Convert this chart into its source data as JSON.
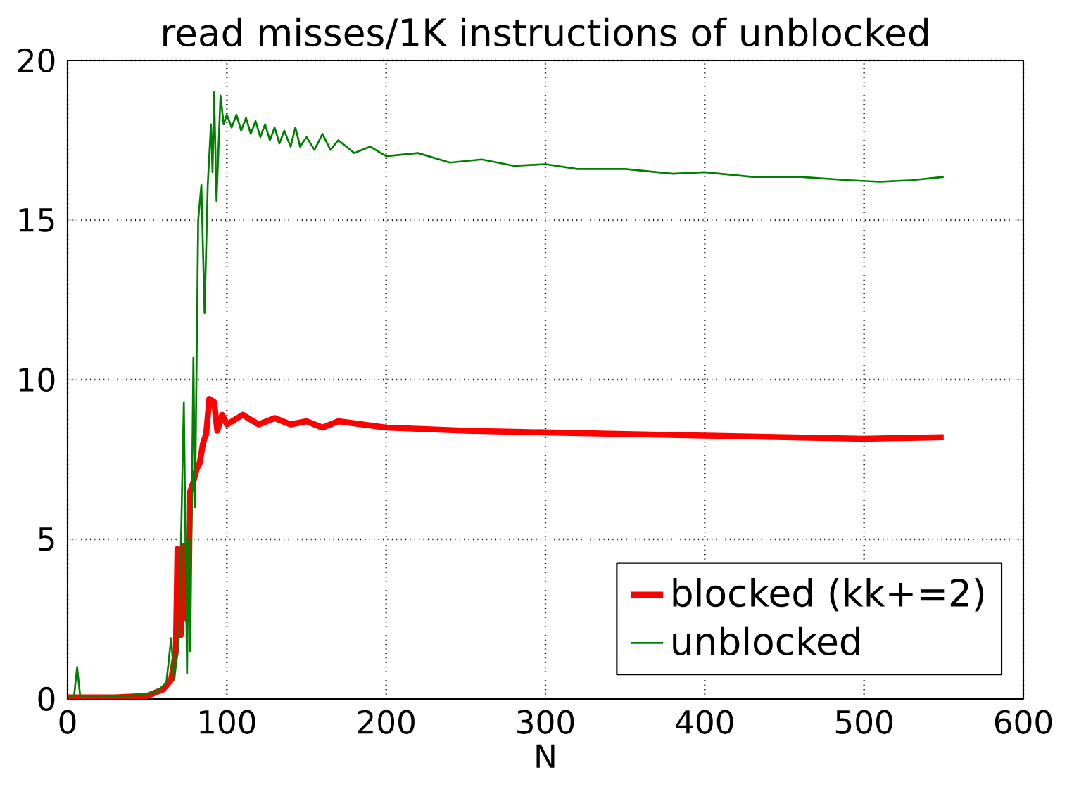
{
  "chart_data": {
    "type": "line",
    "title": "read misses/1K instructions of unblocked",
    "xlabel": "N",
    "xlim": [
      0,
      600
    ],
    "ylim": [
      0,
      20
    ],
    "xticks": [
      0,
      100,
      200,
      300,
      400,
      500,
      600
    ],
    "yticks": [
      0,
      5,
      10,
      15,
      20
    ],
    "grid": true,
    "legend": "bottom right",
    "marker": "none",
    "line_style": "solid",
    "series": [
      {
        "name": "blocked (kk+=2)",
        "color": "#ff0000",
        "x": [
          0,
          30,
          50,
          60,
          65,
          68,
          69,
          71,
          73,
          75,
          77,
          79,
          81,
          83,
          85,
          87,
          89,
          92,
          94,
          97,
          100,
          110,
          120,
          130,
          140,
          150,
          160,
          170,
          200,
          250,
          300,
          350,
          400,
          450,
          500,
          550
        ],
        "values": [
          0.05,
          0.05,
          0.1,
          0.3,
          0.6,
          1.5,
          4.7,
          2.0,
          4.8,
          2.5,
          6.5,
          6.8,
          7.2,
          7.4,
          8.0,
          8.3,
          9.4,
          9.3,
          8.4,
          8.9,
          8.6,
          8.9,
          8.6,
          8.8,
          8.6,
          8.7,
          8.5,
          8.7,
          8.5,
          8.4,
          8.35,
          8.3,
          8.25,
          8.2,
          8.15,
          8.2
        ]
      },
      {
        "name": "unblocked",
        "color": "#008000",
        "x": [
          0,
          4,
          6,
          8,
          20,
          40,
          55,
          62,
          65,
          67,
          70,
          73,
          75,
          76,
          77,
          79,
          80,
          82,
          84,
          86,
          88,
          90,
          91,
          92,
          93.5,
          96,
          98,
          100,
          103,
          106,
          109,
          112,
          115,
          118,
          121,
          124,
          127,
          130,
          133,
          136,
          140,
          143,
          146,
          150,
          155,
          160,
          165,
          170,
          180,
          190,
          200,
          220,
          240,
          260,
          280,
          300,
          320,
          350,
          380,
          400,
          430,
          460,
          490,
          510,
          530,
          550
        ],
        "values": [
          0.05,
          0.05,
          1.0,
          0.05,
          0.05,
          0.1,
          0.2,
          0.5,
          1.9,
          0.6,
          2.0,
          9.3,
          0.8,
          5.0,
          1.5,
          10.7,
          6,
          15,
          16.1,
          12.1,
          16.1,
          18.0,
          16.5,
          19.0,
          15.6,
          18.9,
          18.0,
          18.3,
          17.9,
          18.3,
          17.8,
          18.2,
          17.7,
          18.1,
          17.6,
          18.0,
          17.5,
          17.9,
          17.4,
          17.8,
          17.3,
          17.9,
          17.3,
          17.6,
          17.2,
          17.7,
          17.2,
          17.5,
          17.1,
          17.3,
          17.0,
          17.1,
          16.8,
          16.9,
          16.7,
          16.75,
          16.6,
          16.6,
          16.45,
          16.5,
          16.35,
          16.35,
          16.25,
          16.2,
          16.25,
          16.35
        ]
      }
    ]
  }
}
